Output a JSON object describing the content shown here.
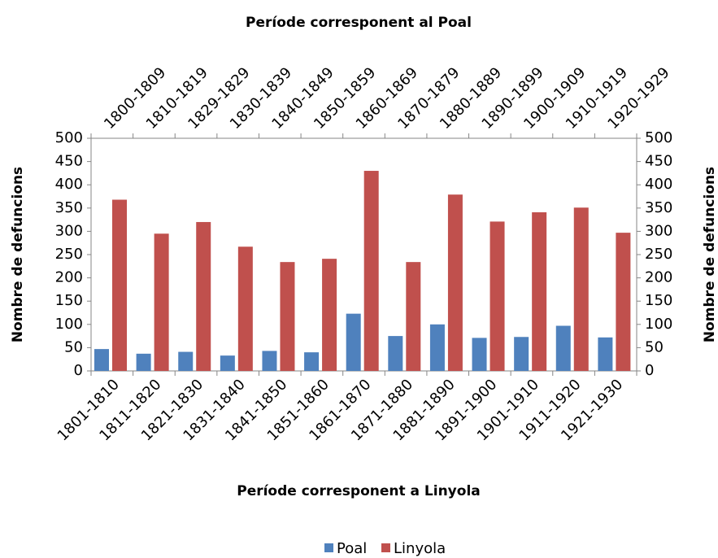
{
  "chart_data": {
    "type": "bar",
    "title": "Període corresponent al Poal",
    "x_label": "Període corresponent a Linyola",
    "y_label": "Nombre de defuncions",
    "y2_label": "Nombre de defuncions",
    "categories": [
      "1801-1810",
      "1811-1820",
      "1821-1830",
      "1831-1840",
      "1841-1850",
      "1851-1860",
      "1861-1870",
      "1871-1880",
      "1881-1890",
      "1891-1900",
      "1901-1910",
      "1911-1920",
      "1921-1930"
    ],
    "x2_categories": [
      "1800-1809",
      "1810-1819",
      "1829-1829",
      "1830-1839",
      "1840-1849",
      "1850-1859",
      "1860-1869",
      "1870-1879",
      "1880-1889",
      "1890-1899",
      "1900-1909",
      "1910-1919",
      "1920-1929"
    ],
    "series": [
      {
        "name": "Poal",
        "color": "#4f81bd",
        "axis": "y2",
        "values": [
          47,
          37,
          41,
          33,
          43,
          40,
          123,
          75,
          100,
          71,
          73,
          97,
          72
        ]
      },
      {
        "name": "Linyola",
        "color": "#c0504d",
        "values": [
          368,
          295,
          320,
          267,
          234,
          241,
          430,
          234,
          379,
          321,
          341,
          351,
          297
        ]
      }
    ],
    "ylim": [
      0,
      500
    ],
    "yticks": [
      0,
      50,
      100,
      150,
      200,
      250,
      300,
      350,
      400,
      450,
      500
    ],
    "y2lim": [
      0,
      500
    ],
    "y2ticks": [
      0,
      50,
      100,
      150,
      200,
      250,
      300,
      350,
      400,
      450,
      500
    ],
    "legend": "bottom"
  }
}
